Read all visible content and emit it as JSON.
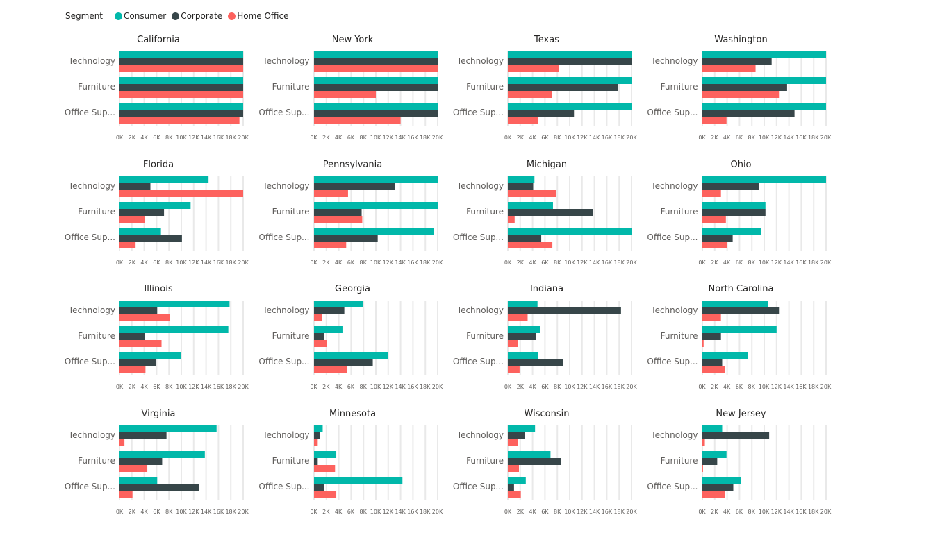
{
  "legend": {
    "title": "Segment",
    "items": [
      {
        "label": "Consumer",
        "color": "#01b8aa"
      },
      {
        "label": "Corporate",
        "color": "#374649"
      },
      {
        "label": "Home Office",
        "color": "#fd625e"
      }
    ]
  },
  "chart_data": {
    "type": "bar",
    "orientation": "horizontal",
    "small_multiples": true,
    "legend_placement": "top-left",
    "categories": [
      "Technology",
      "Furniture",
      "Office Sup..."
    ],
    "series_names": [
      "Consumer",
      "Corporate",
      "Home Office"
    ],
    "xlim": [
      0,
      20000
    ],
    "x_ticks": [
      "0K",
      "2K",
      "4K",
      "6K",
      "8K",
      "10K",
      "12K",
      "14K",
      "16K",
      "18K",
      "20K"
    ],
    "grid": true,
    "panels": [
      {
        "title": "California",
        "values": [
          [
            20000,
            20000,
            20000
          ],
          [
            20000,
            20000,
            20000
          ],
          [
            20000,
            20000,
            19400
          ]
        ]
      },
      {
        "title": "New York",
        "values": [
          [
            20000,
            20000,
            20000
          ],
          [
            20000,
            20000,
            10000
          ],
          [
            20000,
            20000,
            14000
          ]
        ]
      },
      {
        "title": "Texas",
        "values": [
          [
            20000,
            20000,
            8300
          ],
          [
            20000,
            17800,
            7100
          ],
          [
            20000,
            10700,
            4900
          ]
        ]
      },
      {
        "title": "Washington",
        "values": [
          [
            20000,
            11200,
            8600
          ],
          [
            20000,
            13700,
            12500
          ],
          [
            20000,
            14900,
            3900
          ]
        ]
      },
      {
        "title": "Florida",
        "values": [
          [
            14400,
            5000,
            20000
          ],
          [
            11500,
            7200,
            4100
          ],
          [
            6700,
            10100,
            2600
          ]
        ]
      },
      {
        "title": "Pennsylvania",
        "values": [
          [
            20000,
            13100,
            5500
          ],
          [
            20000,
            7700,
            7800
          ],
          [
            19400,
            10300,
            5200
          ]
        ]
      },
      {
        "title": "Michigan",
        "values": [
          [
            4300,
            4100,
            7800
          ],
          [
            7300,
            13800,
            1100
          ],
          [
            20000,
            5400,
            7200
          ]
        ]
      },
      {
        "title": "Ohio",
        "values": [
          [
            20000,
            9100,
            3000
          ],
          [
            10200,
            10200,
            3800
          ],
          [
            9500,
            4900,
            4000
          ]
        ]
      },
      {
        "title": "Illinois",
        "values": [
          [
            17800,
            6100,
            8100
          ],
          [
            17600,
            4100,
            6800
          ],
          [
            9900,
            5900,
            4200
          ]
        ]
      },
      {
        "title": "Georgia",
        "values": [
          [
            7900,
            4900,
            1300
          ],
          [
            4600,
            1600,
            2100
          ],
          [
            12000,
            9500,
            5300
          ]
        ]
      },
      {
        "title": "Indiana",
        "values": [
          [
            4800,
            18300,
            3200
          ],
          [
            5200,
            4600,
            1600
          ],
          [
            4900,
            8900,
            1900
          ]
        ]
      },
      {
        "title": "North Carolina",
        "values": [
          [
            10600,
            12500,
            3000
          ],
          [
            12000,
            3000,
            200
          ],
          [
            7400,
            3200,
            3700
          ]
        ]
      },
      {
        "title": "Virginia",
        "values": [
          [
            15700,
            7600,
            800
          ],
          [
            13800,
            6900,
            4500
          ],
          [
            6100,
            12900,
            2100
          ]
        ]
      },
      {
        "title": "Minnesota",
        "values": [
          [
            1400,
            900,
            600
          ],
          [
            3600,
            600,
            3400
          ],
          [
            14300,
            1600,
            3600
          ]
        ]
      },
      {
        "title": "Wisconsin",
        "values": [
          [
            4400,
            2800,
            1600
          ],
          [
            6900,
            8600,
            1800
          ],
          [
            2900,
            1000,
            2100
          ]
        ]
      },
      {
        "title": "New Jersey",
        "values": [
          [
            3200,
            10800,
            400
          ],
          [
            3900,
            2400,
            100
          ],
          [
            6200,
            5000,
            3700
          ]
        ]
      }
    ]
  }
}
